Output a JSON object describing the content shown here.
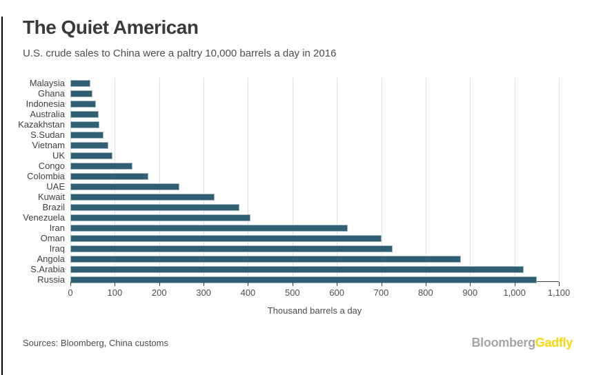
{
  "header": {
    "title": "The Quiet American",
    "subtitle": "U.S. crude sales to China were a paltry 10,000 barrels a day in 2016"
  },
  "chart_data": {
    "type": "bar",
    "orientation": "horizontal",
    "categories": [
      "Malaysia",
      "Ghana",
      "Indonesia",
      "Australia",
      "Kazakhstan",
      "S.Sudan",
      "Vietnam",
      "UK",
      "Congo",
      "Colombia",
      "UAE",
      "Kuwait",
      "Brazil",
      "Venezuela",
      "Iran",
      "Oman",
      "Iraq",
      "Angola",
      "S.Arabia",
      "Russia"
    ],
    "values": [
      45,
      50,
      57,
      63,
      65,
      75,
      85,
      95,
      140,
      175,
      245,
      325,
      380,
      405,
      625,
      700,
      725,
      880,
      1020,
      1050
    ],
    "title": "The Quiet American",
    "xlabel": "Thousand barrels a day",
    "ylabel": "",
    "xlim": [
      0,
      1100
    ],
    "xtick_labels": [
      "0",
      "100",
      "200",
      "300",
      "400",
      "500",
      "600",
      "700",
      "800",
      "900",
      "1,000",
      "1,100"
    ],
    "grid": true,
    "legend": "none",
    "bar_color": "#2f5f73",
    "bar_edge_color": "#9fb4bf",
    "gridline_color": "#e1e1e1"
  },
  "footer": {
    "sources": "Sources: Bloomberg, China customs",
    "logo": {
      "part1": "Bloomberg",
      "part2": "Gadfly"
    },
    "logo_colors": {
      "bloomberg": "#a6a6a6",
      "gadfly": "#ffd60e"
    }
  }
}
